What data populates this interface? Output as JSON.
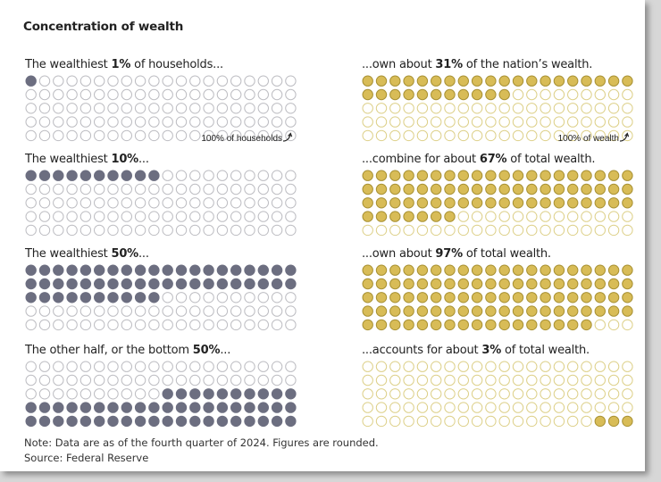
{
  "title": "Concentration of wealth",
  "note": "Note: Data are as of the fourth quarter of 2024. Figures are rounded.",
  "source": "Source: Federal Reserve",
  "colors": {
    "households_fill": "#6c6e80",
    "households_outline": "#bdbdc2",
    "wealth_fill": "#d8bc57",
    "wealth_stroke": "#a89133",
    "wealth_outline": "#ddd089"
  },
  "rows": [
    {
      "left": {
        "pre": "The wealthiest ",
        "bold": "1%",
        "post": " of households..."
      },
      "right": {
        "pre": "...own about ",
        "bold": "31%",
        "post": " of the nation’s wealth."
      }
    },
    {
      "left": {
        "pre": "The wealthiest ",
        "bold": "10%",
        "post": "..."
      },
      "right": {
        "pre": "...combine for about ",
        "bold": "67%",
        "post": " of total wealth."
      }
    },
    {
      "left": {
        "pre": "The wealthiest ",
        "bold": "50%",
        "post": "..."
      },
      "right": {
        "pre": "...own about ",
        "bold": "97%",
        "post": " of total wealth."
      }
    },
    {
      "left": {
        "pre": "The other half, or the bottom ",
        "bold": "50%",
        "post": "..."
      },
      "right": {
        "pre": "...accounts for about ",
        "bold": "3%",
        "post": " of total wealth."
      }
    }
  ],
  "annotations": {
    "households": "100% of households",
    "wealth": "100% of wealth"
  },
  "chart_data": {
    "type": "waffle",
    "grid": {
      "columns": 20,
      "rows": 5,
      "total_units": 100
    },
    "series": [
      {
        "name": "households",
        "values": [
          1,
          10,
          50,
          50
        ]
      },
      {
        "name": "wealth",
        "values": [
          31,
          67,
          97,
          3
        ]
      }
    ]
  }
}
